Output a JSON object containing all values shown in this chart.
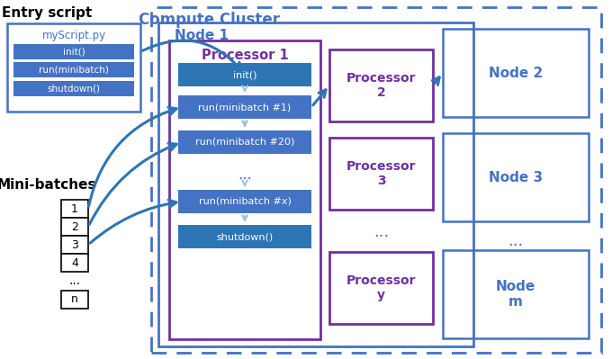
{
  "title": "Compute Cluster",
  "node1_label": "Node 1",
  "proc1_label": "Processor 1",
  "proc2_label": "Processor\n2",
  "proc3_label": "Processor\n3",
  "procy_label": "Processor\ny",
  "node2_label": "Node 2",
  "node3_label": "Node 3",
  "nodem_label": "Node\nm",
  "entry_script_label": "Entry script",
  "minibatches_label": "Mini-batches",
  "script_file_label": "myScript.py",
  "proc1_steps": [
    "init()",
    "run(minibatch #1)",
    "run(minibatch #20)",
    "...",
    "run(minibatch #x)",
    "shutdown()"
  ],
  "script_steps": [
    "init()",
    "run(minibatch)",
    "shutdown()"
  ],
  "minibatch_items": [
    "1",
    "2",
    "3",
    "4"
  ],
  "blue_dark": "#2E75B6",
  "blue_mid": "#4472C4",
  "blue_light": "#9DC3E6",
  "blue_text": "#4472C4",
  "purple": "#7030A0",
  "dash_color": "#4472C4",
  "node_color": "#4472C4",
  "white": "#FFFFFF",
  "black": "#000000",
  "bg": "#FFFFFF",
  "arrow_color": "#4472C4"
}
